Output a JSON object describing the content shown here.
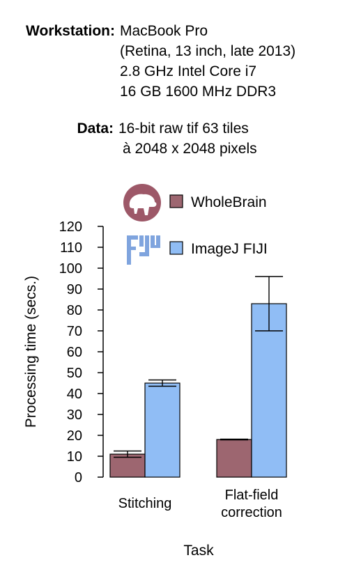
{
  "workstation": {
    "label": "Workstation:",
    "lines": [
      "MacBook Pro",
      "(Retina, 13 inch, late 2013)",
      "2.8 GHz Intel Core i7",
      "16 GB 1600 MHz DDR3"
    ]
  },
  "data_spec": {
    "label": "Data:",
    "lines": [
      "16-bit raw tif 63 tiles",
      "à 2048 x 2048 pixels"
    ]
  },
  "chart_data": {
    "type": "bar",
    "categories": [
      "Stitching",
      "Flat-field correction"
    ],
    "category_lines": [
      [
        "Stitching"
      ],
      [
        "Flat-field",
        "correction"
      ]
    ],
    "series": [
      {
        "name": "WholeBrain",
        "values": [
          11,
          18
        ],
        "errors": [
          1.5,
          0.2
        ],
        "color": "#9d6670",
        "icon": "wholebrain-logo-icon"
      },
      {
        "name": "ImageJ FIJI",
        "values": [
          45,
          83
        ],
        "errors": [
          1.5,
          13
        ],
        "color": "#90bdf5",
        "icon": "fiji-logo-icon"
      }
    ],
    "xlabel": "Task",
    "ylabel": "Processing time (secs.)",
    "ylim": [
      0,
      120
    ],
    "yticks": [
      0,
      10,
      20,
      30,
      40,
      50,
      60,
      70,
      80,
      90,
      100,
      110,
      120
    ],
    "grid": false,
    "legend_position": "top-right"
  }
}
